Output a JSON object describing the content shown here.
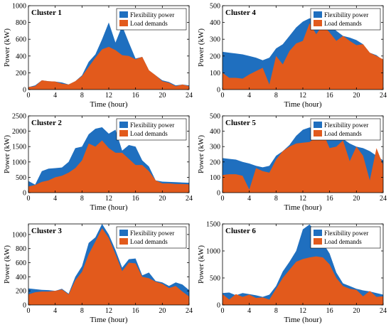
{
  "colors": {
    "flexibility": "#1f6fbf",
    "load": "#e25a1c",
    "axis": "#000000"
  },
  "chart_data": [
    {
      "type": "area",
      "title": "Cluster 1",
      "xlabel": "Time  (hour)",
      "ylabel": "Power (kW)",
      "xlim": [
        0,
        24
      ],
      "ylim": [
        0,
        1000
      ],
      "xticks": [
        0,
        4,
        8,
        12,
        16,
        20,
        24
      ],
      "yticks": [
        0,
        200,
        400,
        600,
        800,
        1000
      ],
      "legend": "top-right",
      "x": [
        0,
        1,
        2,
        3,
        4,
        5,
        6,
        7,
        8,
        9,
        10,
        11,
        12,
        13,
        14,
        15,
        16,
        17,
        18,
        19,
        20,
        21,
        22,
        23,
        24
      ],
      "series": [
        {
          "name": "Flexibility power",
          "values": [
            30,
            50,
            110,
            100,
            95,
            85,
            60,
            100,
            170,
            330,
            420,
            600,
            800,
            560,
            760,
            560,
            370,
            390,
            230,
            170,
            110,
            90,
            50,
            60,
            50
          ]
        },
        {
          "name": "Load demands",
          "values": [
            30,
            40,
            110,
            100,
            95,
            70,
            60,
            100,
            160,
            270,
            380,
            480,
            510,
            470,
            410,
            400,
            360,
            390,
            230,
            170,
            100,
            80,
            40,
            60,
            40
          ]
        }
      ]
    },
    {
      "type": "area",
      "title": "Cluster 4",
      "xlabel": "Time  (hour)",
      "ylabel": "Power (kW)",
      "xlim": [
        0,
        24
      ],
      "ylim": [
        0,
        500
      ],
      "xticks": [
        0,
        4,
        8,
        12,
        16,
        20,
        24
      ],
      "yticks": [
        0,
        100,
        200,
        300,
        400,
        500
      ],
      "legend": "top-right",
      "x": [
        0,
        1,
        2,
        3,
        4,
        5,
        6,
        7,
        8,
        9,
        10,
        11,
        12,
        13,
        14,
        15,
        16,
        17,
        18,
        19,
        20,
        21,
        22,
        23,
        24
      ],
      "series": [
        {
          "name": "Flexibility power",
          "values": [
            225,
            220,
            215,
            210,
            200,
            190,
            175,
            190,
            245,
            270,
            320,
            370,
            405,
            425,
            415,
            410,
            390,
            350,
            320,
            310,
            295,
            270,
            220,
            205,
            175
          ]
        },
        {
          "name": "Load demands",
          "values": [
            100,
            70,
            70,
            65,
            90,
            110,
            130,
            30,
            200,
            150,
            230,
            275,
            290,
            395,
            330,
            385,
            340,
            290,
            320,
            290,
            265,
            270,
            220,
            200,
            180
          ]
        }
      ]
    },
    {
      "type": "area",
      "title": "Cluster 2",
      "xlabel": "Time  (hour)",
      "ylabel": "Power (kW)",
      "xlim": [
        0,
        24
      ],
      "ylim": [
        0,
        2500
      ],
      "xticks": [
        0,
        4,
        8,
        12,
        16,
        20,
        24
      ],
      "yticks": [
        0,
        500,
        1000,
        1500,
        2000,
        2500
      ],
      "legend": "top-right",
      "x": [
        0,
        1,
        2,
        3,
        4,
        5,
        6,
        7,
        8,
        9,
        10,
        11,
        12,
        13,
        14,
        15,
        16,
        17,
        18,
        19,
        20,
        21,
        22,
        23,
        24
      ],
      "series": [
        {
          "name": "Flexibility power",
          "values": [
            380,
            260,
            700,
            780,
            800,
            820,
            1000,
            1450,
            1500,
            1900,
            2080,
            2130,
            1920,
            2050,
            1370,
            1550,
            1500,
            1050,
            850,
            400,
            360,
            350,
            340,
            330,
            320
          ]
        },
        {
          "name": "Load demands",
          "values": [
            200,
            250,
            350,
            400,
            500,
            550,
            650,
            800,
            1050,
            1600,
            1500,
            1700,
            1450,
            1300,
            1300,
            1100,
            900,
            900,
            700,
            400,
            300,
            300,
            280,
            280,
            270
          ]
        }
      ]
    },
    {
      "type": "area",
      "title": "Cluster 5",
      "xlabel": "Time  (hour)",
      "ylabel": "Power (kW)",
      "xlim": [
        0,
        24
      ],
      "ylim": [
        0,
        500
      ],
      "xticks": [
        0,
        4,
        8,
        12,
        16,
        20,
        24
      ],
      "yticks": [
        0,
        100,
        200,
        300,
        400,
        500
      ],
      "legend": "top-right",
      "x": [
        0,
        1,
        2,
        3,
        4,
        5,
        6,
        7,
        8,
        9,
        10,
        11,
        12,
        13,
        14,
        15,
        16,
        17,
        18,
        19,
        20,
        21,
        22,
        23,
        24
      ],
      "series": [
        {
          "name": "Flexibility power",
          "values": [
            225,
            220,
            215,
            200,
            190,
            175,
            165,
            175,
            240,
            270,
            310,
            370,
            410,
            425,
            415,
            410,
            400,
            380,
            350,
            320,
            300,
            290,
            270,
            240,
            210
          ]
        },
        {
          "name": "Load demands",
          "values": [
            115,
            120,
            120,
            110,
            20,
            160,
            140,
            130,
            215,
            270,
            300,
            320,
            325,
            330,
            360,
            390,
            290,
            300,
            340,
            205,
            300,
            240,
            80,
            290,
            180
          ]
        }
      ]
    },
    {
      "type": "area",
      "title": "Cluster 3",
      "xlabel": "Time  (hour)",
      "ylabel": "Power (kW)",
      "xlim": [
        0,
        24
      ],
      "ylim": [
        0,
        1150
      ],
      "xticks": [
        0,
        4,
        8,
        12,
        16,
        20,
        24
      ],
      "yticks": [
        0,
        200,
        400,
        600,
        800,
        1000
      ],
      "legend": "top-right",
      "x": [
        0,
        1,
        2,
        3,
        4,
        5,
        6,
        7,
        8,
        9,
        10,
        11,
        12,
        13,
        14,
        15,
        16,
        17,
        18,
        19,
        20,
        21,
        22,
        23,
        24
      ],
      "series": [
        {
          "name": "Flexibility power",
          "values": [
            235,
            225,
            215,
            210,
            200,
            230,
            160,
            400,
            550,
            880,
            960,
            1150,
            1000,
            780,
            530,
            650,
            660,
            420,
            460,
            340,
            320,
            270,
            320,
            290,
            210
          ]
        },
        {
          "name": "Load demands",
          "values": [
            150,
            180,
            190,
            190,
            200,
            220,
            150,
            350,
            470,
            720,
            900,
            1090,
            950,
            720,
            480,
            600,
            590,
            400,
            380,
            330,
            300,
            240,
            270,
            190,
            120
          ]
        }
      ]
    },
    {
      "type": "area",
      "title": "Cluster 6",
      "xlabel": "Time  (hour)",
      "ylabel": "Power (kW)",
      "xlim": [
        0,
        24
      ],
      "ylim": [
        0,
        1500
      ],
      "xticks": [
        0,
        4,
        8,
        12,
        16,
        20,
        24
      ],
      "yticks": [
        0,
        500,
        1000,
        1500
      ],
      "legend": "top-right",
      "x": [
        0,
        1,
        2,
        3,
        4,
        5,
        6,
        7,
        8,
        9,
        10,
        11,
        12,
        13,
        14,
        15,
        16,
        17,
        18,
        19,
        20,
        21,
        22,
        23,
        24
      ],
      "series": [
        {
          "name": "Flexibility power",
          "values": [
            220,
            230,
            180,
            220,
            200,
            180,
            150,
            190,
            350,
            620,
            800,
            1000,
            1400,
            1490,
            1350,
            1150,
            950,
            600,
            400,
            350,
            300,
            270,
            250,
            220,
            190
          ]
        },
        {
          "name": "Load demands",
          "values": [
            200,
            100,
            200,
            150,
            190,
            130,
            140,
            100,
            300,
            500,
            650,
            800,
            850,
            880,
            900,
            880,
            750,
            500,
            350,
            300,
            280,
            160,
            260,
            150,
            160
          ]
        }
      ]
    }
  ]
}
